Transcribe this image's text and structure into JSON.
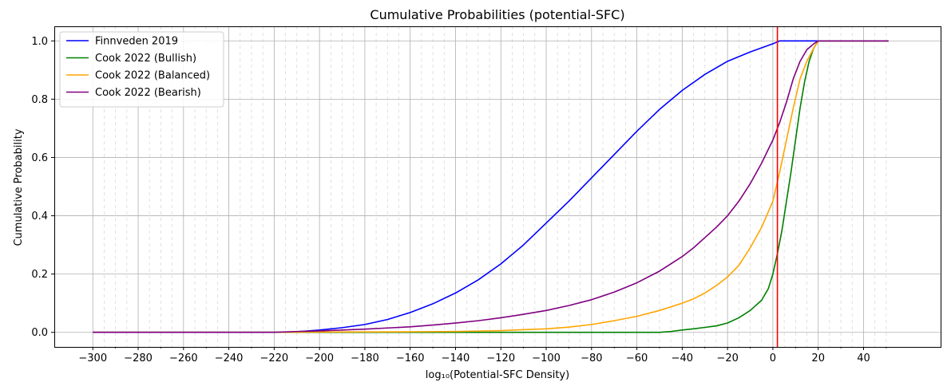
{
  "chart_data": {
    "type": "line",
    "title": "Cumulative Probabilities (potential-SFC)",
    "xlabel": "log₁₀(Potential-SFC Density)",
    "ylabel": "Cumulative Probability",
    "xlim": [
      -317,
      74
    ],
    "ylim": [
      -0.05,
      1.05
    ],
    "x_ticks": [
      -300,
      -280,
      -260,
      -240,
      -220,
      -200,
      -180,
      -160,
      -140,
      -120,
      -100,
      -80,
      -60,
      -40,
      -20,
      0,
      20,
      40
    ],
    "x_tick_labels": [
      "−300",
      "−280",
      "−260",
      "−240",
      "−220",
      "−200",
      "−180",
      "−160",
      "−140",
      "−120",
      "−100",
      "−80",
      "−60",
      "−40",
      "−20",
      "0",
      "20",
      "40"
    ],
    "y_ticks": [
      0.0,
      0.2,
      0.4,
      0.6,
      0.8,
      1.0
    ],
    "y_tick_labels": [
      "0.0",
      "0.2",
      "0.4",
      "0.6",
      "0.8",
      "1.0"
    ],
    "grid": true,
    "legend_position": "top-left",
    "vline": {
      "x": 2,
      "color": "#ff0000"
    },
    "series": [
      {
        "name": "Finnveden 2019",
        "color": "#0000ff",
        "points": [
          [
            -300,
            0
          ],
          [
            -220,
            0
          ],
          [
            -210,
            0.002
          ],
          [
            -200,
            0.008
          ],
          [
            -190,
            0.016
          ],
          [
            -180,
            0.027
          ],
          [
            -170,
            0.044
          ],
          [
            -160,
            0.068
          ],
          [
            -150,
            0.098
          ],
          [
            -140,
            0.135
          ],
          [
            -130,
            0.18
          ],
          [
            -120,
            0.235
          ],
          [
            -110,
            0.3
          ],
          [
            -100,
            0.375
          ],
          [
            -90,
            0.45
          ],
          [
            -80,
            0.53
          ],
          [
            -70,
            0.61
          ],
          [
            -60,
            0.69
          ],
          [
            -50,
            0.765
          ],
          [
            -40,
            0.83
          ],
          [
            -30,
            0.885
          ],
          [
            -20,
            0.93
          ],
          [
            -10,
            0.962
          ],
          [
            0,
            0.99
          ],
          [
            3,
            1.0
          ],
          [
            20,
            1.0
          ],
          [
            40,
            1.0
          ],
          [
            51,
            1.0
          ]
        ]
      },
      {
        "name": "Cook 2022 (Bullish)",
        "color": "#008000",
        "points": [
          [
            -300,
            0
          ],
          [
            -50,
            0
          ],
          [
            -45,
            0.003
          ],
          [
            -40,
            0.008
          ],
          [
            -35,
            0.012
          ],
          [
            -30,
            0.017
          ],
          [
            -25,
            0.022
          ],
          [
            -20,
            0.032
          ],
          [
            -15,
            0.05
          ],
          [
            -10,
            0.075
          ],
          [
            -5,
            0.11
          ],
          [
            -2,
            0.15
          ],
          [
            0,
            0.2
          ],
          [
            2,
            0.27
          ],
          [
            4,
            0.35
          ],
          [
            6,
            0.45
          ],
          [
            8,
            0.55
          ],
          [
            10,
            0.66
          ],
          [
            12,
            0.77
          ],
          [
            14,
            0.86
          ],
          [
            16,
            0.93
          ],
          [
            18,
            0.975
          ],
          [
            20,
            1.0
          ],
          [
            40,
            1.0
          ],
          [
            51,
            1.0
          ]
        ]
      },
      {
        "name": "Cook 2022 (Balanced)",
        "color": "#ffa500",
        "points": [
          [
            -300,
            0
          ],
          [
            -220,
            0
          ],
          [
            -200,
            0.001
          ],
          [
            -160,
            0.002
          ],
          [
            -140,
            0.003
          ],
          [
            -120,
            0.006
          ],
          [
            -100,
            0.012
          ],
          [
            -90,
            0.018
          ],
          [
            -80,
            0.027
          ],
          [
            -70,
            0.04
          ],
          [
            -60,
            0.055
          ],
          [
            -50,
            0.075
          ],
          [
            -40,
            0.1
          ],
          [
            -35,
            0.115
          ],
          [
            -30,
            0.135
          ],
          [
            -25,
            0.16
          ],
          [
            -20,
            0.19
          ],
          [
            -15,
            0.23
          ],
          [
            -10,
            0.29
          ],
          [
            -5,
            0.36
          ],
          [
            0,
            0.45
          ],
          [
            3,
            0.55
          ],
          [
            6,
            0.66
          ],
          [
            9,
            0.77
          ],
          [
            12,
            0.87
          ],
          [
            15,
            0.93
          ],
          [
            18,
            0.975
          ],
          [
            20,
            1.0
          ],
          [
            40,
            1.0
          ],
          [
            51,
            1.0
          ]
        ]
      },
      {
        "name": "Cook 2022 (Bearish)",
        "color": "#800080",
        "points": [
          [
            -300,
            0
          ],
          [
            -220,
            0
          ],
          [
            -210,
            0.003
          ],
          [
            -200,
            0.005
          ],
          [
            -190,
            0.008
          ],
          [
            -180,
            0.011
          ],
          [
            -170,
            0.015
          ],
          [
            -160,
            0.019
          ],
          [
            -150,
            0.025
          ],
          [
            -140,
            0.032
          ],
          [
            -130,
            0.04
          ],
          [
            -120,
            0.05
          ],
          [
            -110,
            0.062
          ],
          [
            -100,
            0.075
          ],
          [
            -90,
            0.092
          ],
          [
            -80,
            0.112
          ],
          [
            -70,
            0.138
          ],
          [
            -60,
            0.17
          ],
          [
            -50,
            0.21
          ],
          [
            -40,
            0.26
          ],
          [
            -35,
            0.29
          ],
          [
            -30,
            0.325
          ],
          [
            -25,
            0.36
          ],
          [
            -20,
            0.4
          ],
          [
            -15,
            0.45
          ],
          [
            -10,
            0.51
          ],
          [
            -5,
            0.58
          ],
          [
            0,
            0.66
          ],
          [
            3,
            0.72
          ],
          [
            6,
            0.79
          ],
          [
            9,
            0.87
          ],
          [
            12,
            0.93
          ],
          [
            15,
            0.97
          ],
          [
            18,
            0.99
          ],
          [
            20,
            1.0
          ],
          [
            40,
            1.0
          ],
          [
            51,
            1.0
          ]
        ]
      }
    ]
  }
}
